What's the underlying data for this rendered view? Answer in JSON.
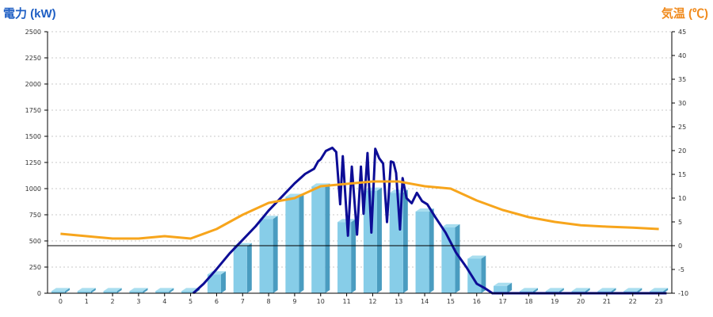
{
  "chart_data": {
    "type": "bar",
    "categories": [
      "0",
      "1",
      "2",
      "3",
      "4",
      "5",
      "6",
      "7",
      "8",
      "9",
      "10",
      "11",
      "12",
      "13",
      "14",
      "15",
      "16",
      "17",
      "18",
      "19",
      "20",
      "21",
      "22",
      "23"
    ],
    "y_left": {
      "label": "電力 (kW)",
      "ylim": [
        0,
        2500
      ],
      "ticks": [
        "0",
        "250",
        "500",
        "750",
        "1000",
        "1250",
        "1500",
        "1750",
        "2000",
        "2250",
        "2500"
      ]
    },
    "y_right": {
      "label": "気温 (℃)",
      "ylim": [
        -10,
        45
      ],
      "ticks": [
        "-10",
        "-5",
        "0",
        "5",
        "10",
        "15",
        "20",
        "25",
        "30",
        "35",
        "40",
        "45"
      ]
    },
    "series": [
      {
        "kind": "bar",
        "axis": "left",
        "values": [
          20,
          20,
          20,
          20,
          20,
          20,
          180,
          450,
          710,
          920,
          1020,
          680,
          980,
          960,
          780,
          630,
          330,
          70,
          20,
          20,
          20,
          20,
          20,
          20
        ]
      },
      {
        "kind": "line",
        "axis": "left",
        "x": [
          5.1,
          5.5,
          6,
          6.5,
          7,
          7.5,
          8,
          8.5,
          9,
          9.4,
          9.75,
          9.9,
          10,
          10.2,
          10.45,
          10.6,
          10.75,
          10.85,
          11.05,
          11.2,
          11.4,
          11.55,
          11.65,
          11.8,
          11.95,
          12.1,
          12.25,
          12.4,
          12.55,
          12.7,
          12.8,
          12.9,
          13.05,
          13.15,
          13.3,
          13.5,
          13.7,
          13.9,
          14.1,
          14.4,
          14.8,
          15.2,
          15.6,
          16,
          16.3,
          16.6,
          16.8,
          17,
          23.3
        ],
        "y": [
          0,
          90,
          230,
          380,
          510,
          640,
          790,
          920,
          1050,
          1140,
          1190,
          1260,
          1280,
          1360,
          1390,
          1350,
          850,
          1310,
          550,
          1210,
          560,
          1210,
          760,
          1340,
          580,
          1380,
          1290,
          1240,
          680,
          1260,
          1250,
          1150,
          610,
          1100,
          910,
          860,
          960,
          880,
          850,
          730,
          580,
          390,
          250,
          90,
          50,
          0,
          0,
          0,
          0
        ]
      },
      {
        "kind": "line",
        "axis": "right",
        "x": [
          0,
          1,
          2,
          3,
          4,
          5,
          6,
          7,
          8,
          9,
          10,
          11,
          12,
          13,
          14,
          15,
          16,
          17,
          18,
          19,
          20,
          21,
          22,
          23
        ],
        "values": [
          2.5,
          2.0,
          1.5,
          1.5,
          2.0,
          1.5,
          3.5,
          6.5,
          9.0,
          10.0,
          12.5,
          13.0,
          13.5,
          13.5,
          12.5,
          12.0,
          9.5,
          7.5,
          6.0,
          5.0,
          4.3,
          4.0,
          3.8,
          3.5
        ]
      }
    ],
    "colors": {
      "bar_front": "#87cde8",
      "bar_side": "#4a9cc0",
      "bar_top": "#a9deef",
      "power_line": "#0d0d96",
      "temp_line": "#f7a51c",
      "left_title": "#1f5fc4",
      "right_title": "#f08a1c",
      "grid": "#c8c8c8"
    },
    "grid": true
  }
}
